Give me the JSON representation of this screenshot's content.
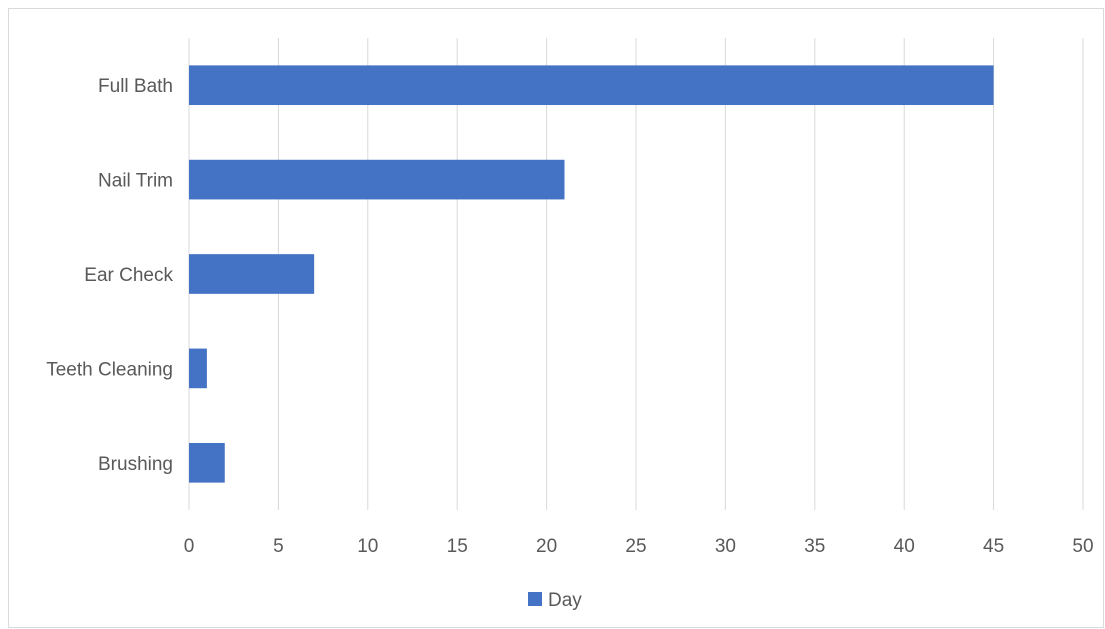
{
  "chart_data": {
    "type": "bar",
    "orientation": "horizontal",
    "categories": [
      "Full Bath",
      "Nail Trim",
      "Ear Check",
      "Teeth Cleaning",
      "Brushing"
    ],
    "series": [
      {
        "name": "Day",
        "values": [
          45,
          21,
          7,
          1,
          2
        ],
        "color": "#4472C4"
      }
    ],
    "xlim": [
      0,
      50
    ],
    "x_ticks": [
      0,
      5,
      10,
      15,
      20,
      25,
      30,
      35,
      40,
      45,
      50
    ],
    "grid": true,
    "legend": {
      "placement": "bottom",
      "entries": [
        "Day"
      ]
    },
    "colors": {
      "bar": "#4472C4",
      "grid": "#d9d9d9",
      "text": "#595959"
    }
  }
}
